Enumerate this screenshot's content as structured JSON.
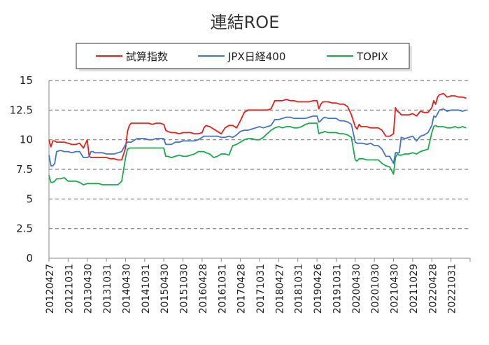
{
  "chart_data": {
    "type": "line",
    "title": "連結ROE",
    "xlabel": "",
    "ylabel": "",
    "ylim": [
      0,
      15
    ],
    "y_ticks": [
      "0",
      "2.5",
      "5",
      "7.5",
      "10",
      "12.5",
      "15"
    ],
    "grid": "horizontal dashed",
    "legend_position": "top",
    "x_tick_labels": [
      "20120427",
      "20121031",
      "20130430",
      "20131031",
      "20140430",
      "20141031",
      "20150430",
      "20151030",
      "20160428",
      "20161031",
      "20170428",
      "20171031",
      "20180427",
      "20181031",
      "20190426",
      "20191031",
      "20200430",
      "20201030",
      "20210430",
      "20211029",
      "20220428",
      "20221031"
    ],
    "series": [
      {
        "name": "試算指数",
        "color": "#e0201b",
        "x": [
          0,
          0.1,
          0.2,
          0.3,
          0.4,
          0.6,
          0.8,
          1.0,
          1.2,
          1.4,
          1.6,
          1.8,
          2.0,
          2.1,
          2.2,
          2.3,
          2.4,
          2.6,
          2.8,
          3.0,
          3.2,
          3.4,
          3.6,
          3.8,
          4.0,
          4.1,
          4.2,
          4.3,
          4.4,
          4.6,
          4.8,
          5.0,
          5.2,
          5.4,
          5.6,
          5.8,
          6.0,
          6.1,
          6.2,
          6.4,
          6.6,
          6.8,
          7.0,
          7.2,
          7.4,
          7.6,
          7.8,
          8.0,
          8.1,
          8.2,
          8.4,
          8.6,
          8.8,
          9.0,
          9.2,
          9.4,
          9.6,
          9.8,
          10.0,
          10.2,
          10.4,
          10.6,
          10.8,
          11.0,
          11.2,
          11.4,
          11.6,
          11.8,
          12.0,
          12.2,
          12.4,
          12.6,
          12.8,
          13.0,
          13.2,
          13.4,
          13.6,
          13.8,
          14.0,
          14.1,
          14.2,
          14.3,
          14.4,
          14.6,
          14.8,
          15.0,
          15.2,
          15.4,
          15.6,
          15.8,
          16.0,
          16.1,
          16.2,
          16.3,
          16.4,
          16.6,
          16.8,
          17.0,
          17.2,
          17.4,
          17.6,
          17.8,
          18.0,
          18.1,
          18.2,
          18.3,
          18.4,
          18.6,
          18.8,
          19.0,
          19.2,
          19.4,
          19.6,
          19.8,
          20.0,
          20.1,
          20.2,
          20.3,
          20.4,
          20.6,
          20.8,
          21.0,
          21.2,
          21.4,
          21.6,
          21.8
        ],
        "values": [
          10.0,
          9.4,
          9.9,
          9.9,
          9.8,
          9.8,
          9.8,
          9.7,
          9.6,
          9.6,
          9.7,
          9.3,
          10.0,
          8.6,
          8.5,
          8.5,
          8.5,
          8.5,
          8.5,
          8.5,
          8.4,
          8.4,
          8.3,
          8.3,
          9.3,
          10.7,
          11.2,
          11.4,
          11.4,
          11.4,
          11.4,
          11.4,
          11.4,
          11.3,
          11.4,
          11.4,
          11.3,
          10.8,
          10.7,
          10.6,
          10.6,
          10.5,
          10.6,
          10.6,
          10.6,
          10.5,
          10.5,
          10.6,
          11.0,
          11.2,
          11.1,
          10.9,
          10.7,
          10.5,
          11.0,
          11.2,
          11.2,
          11.0,
          11.6,
          12.3,
          12.5,
          12.5,
          12.5,
          12.5,
          12.5,
          12.5,
          12.6,
          13.3,
          13.3,
          13.3,
          13.4,
          13.3,
          13.3,
          13.2,
          13.2,
          13.2,
          13.2,
          13.3,
          13.3,
          12.6,
          13.0,
          13.2,
          13.2,
          13.2,
          13.1,
          13.1,
          13.0,
          13.0,
          12.8,
          12.1,
          11.1,
          10.9,
          11.3,
          11.1,
          11.1,
          11.1,
          11.0,
          11.0,
          11.0,
          10.8,
          10.3,
          10.3,
          10.5,
          12.7,
          12.4,
          12.3,
          12.1,
          12.1,
          12.1,
          12.2,
          12.0,
          12.4,
          12.3,
          12.3,
          12.7,
          13.3,
          13.0,
          13.6,
          13.8,
          13.9,
          13.6,
          13.7,
          13.7,
          13.6,
          13.6,
          13.5
        ]
      },
      {
        "name": "JPX日経400",
        "color": "#4472c4",
        "x": [
          0,
          0.1,
          0.2,
          0.3,
          0.4,
          0.6,
          0.8,
          1.0,
          1.2,
          1.4,
          1.6,
          1.8,
          2.0,
          2.1,
          2.2,
          2.3,
          2.4,
          2.6,
          2.8,
          3.0,
          3.2,
          3.4,
          3.6,
          3.8,
          4.0,
          4.1,
          4.2,
          4.3,
          4.4,
          4.6,
          4.8,
          5.0,
          5.2,
          5.4,
          5.6,
          5.8,
          6.0,
          6.1,
          6.2,
          6.4,
          6.6,
          6.8,
          7.0,
          7.2,
          7.4,
          7.6,
          7.8,
          8.0,
          8.1,
          8.2,
          8.4,
          8.6,
          8.8,
          9.0,
          9.2,
          9.4,
          9.6,
          9.8,
          10.0,
          10.2,
          10.4,
          10.6,
          10.8,
          11.0,
          11.2,
          11.4,
          11.6,
          11.8,
          12.0,
          12.2,
          12.4,
          12.6,
          12.8,
          13.0,
          13.2,
          13.4,
          13.6,
          13.8,
          14.0,
          14.1,
          14.2,
          14.3,
          14.4,
          14.6,
          14.8,
          15.0,
          15.2,
          15.4,
          15.6,
          15.8,
          16.0,
          16.1,
          16.2,
          16.3,
          16.4,
          16.6,
          16.8,
          17.0,
          17.2,
          17.4,
          17.6,
          17.8,
          18.0,
          18.1,
          18.2,
          18.3,
          18.4,
          18.6,
          18.8,
          19.0,
          19.2,
          19.4,
          19.6,
          19.8,
          20.0,
          20.1,
          20.2,
          20.3,
          20.4,
          20.6,
          20.8,
          21.0,
          21.2,
          21.4,
          21.6,
          21.8
        ],
        "values": [
          8.7,
          7.8,
          7.8,
          8.0,
          9.0,
          9.1,
          9.0,
          9.0,
          8.9,
          9.0,
          9.0,
          8.5,
          8.5,
          8.6,
          9.0,
          9.0,
          8.9,
          8.9,
          8.9,
          8.8,
          8.8,
          8.8,
          8.9,
          9.0,
          9.6,
          9.8,
          9.8,
          9.8,
          9.9,
          10.1,
          10.1,
          10.1,
          10.0,
          10.0,
          10.1,
          10.1,
          10.1,
          9.6,
          9.6,
          9.6,
          9.8,
          9.8,
          9.9,
          9.9,
          9.9,
          9.9,
          10.0,
          10.2,
          10.3,
          10.3,
          10.3,
          10.3,
          10.3,
          10.2,
          10.2,
          10.3,
          10.2,
          10.4,
          10.7,
          10.8,
          10.8,
          10.9,
          11.0,
          11.1,
          11.0,
          11.1,
          11.2,
          11.7,
          11.7,
          11.8,
          11.9,
          11.9,
          11.8,
          11.8,
          11.8,
          11.8,
          11.9,
          12.0,
          12.0,
          11.5,
          11.6,
          11.8,
          11.9,
          11.8,
          11.8,
          11.8,
          11.6,
          11.6,
          11.5,
          11.3,
          9.8,
          9.7,
          9.7,
          9.7,
          9.7,
          9.6,
          9.7,
          9.5,
          9.5,
          9.2,
          8.6,
          8.6,
          8.0,
          8.9,
          8.9,
          8.9,
          10.2,
          10.1,
          10.2,
          10.3,
          9.9,
          10.3,
          10.4,
          10.6,
          11.2,
          12.0,
          11.9,
          12.2,
          12.5,
          12.6,
          12.4,
          12.5,
          12.5,
          12.5,
          12.4,
          12.5
        ]
      },
      {
        "name": "TOPIX",
        "color": "#1aa84a",
        "x": [
          0,
          0.1,
          0.2,
          0.3,
          0.4,
          0.6,
          0.8,
          1.0,
          1.2,
          1.4,
          1.6,
          1.8,
          2.0,
          2.1,
          2.2,
          2.3,
          2.4,
          2.6,
          2.8,
          3.0,
          3.2,
          3.4,
          3.6,
          3.8,
          4.0,
          4.1,
          4.2,
          4.3,
          4.4,
          4.6,
          4.8,
          5.0,
          5.2,
          5.4,
          5.6,
          5.8,
          6.0,
          6.1,
          6.2,
          6.4,
          6.6,
          6.8,
          7.0,
          7.2,
          7.4,
          7.6,
          7.8,
          8.0,
          8.1,
          8.2,
          8.4,
          8.6,
          8.8,
          9.0,
          9.2,
          9.4,
          9.6,
          9.8,
          10.0,
          10.2,
          10.4,
          10.6,
          10.8,
          11.0,
          11.2,
          11.4,
          11.6,
          11.8,
          12.0,
          12.2,
          12.4,
          12.6,
          12.8,
          13.0,
          13.2,
          13.4,
          13.6,
          13.8,
          14.0,
          14.1,
          14.2,
          14.3,
          14.4,
          14.6,
          14.8,
          15.0,
          15.2,
          15.4,
          15.6,
          15.8,
          16.0,
          16.1,
          16.2,
          16.3,
          16.4,
          16.6,
          16.8,
          17.0,
          17.2,
          17.4,
          17.6,
          17.8,
          18.0,
          18.1,
          18.2,
          18.3,
          18.4,
          18.6,
          18.8,
          19.0,
          19.2,
          19.4,
          19.6,
          19.8,
          20.0,
          20.1,
          20.2,
          20.3,
          20.4,
          20.6,
          20.8,
          21.0,
          21.2,
          21.4,
          21.6,
          21.8
        ],
        "values": [
          7.0,
          6.4,
          6.4,
          6.5,
          6.7,
          6.7,
          6.8,
          6.5,
          6.5,
          6.5,
          6.4,
          6.2,
          6.3,
          6.3,
          6.3,
          6.3,
          6.3,
          6.3,
          6.2,
          6.2,
          6.2,
          6.2,
          6.2,
          6.5,
          8.5,
          9.2,
          9.3,
          9.3,
          9.3,
          9.3,
          9.3,
          9.3,
          9.3,
          9.3,
          9.3,
          9.3,
          9.3,
          8.6,
          8.6,
          8.5,
          8.6,
          8.7,
          8.6,
          8.6,
          8.7,
          8.8,
          9.0,
          9.0,
          9.0,
          8.9,
          8.8,
          8.5,
          8.6,
          8.8,
          8.8,
          8.7,
          9.5,
          9.6,
          9.8,
          10.0,
          10.1,
          10.1,
          10.0,
          10.0,
          10.2,
          10.5,
          10.8,
          11.0,
          11.1,
          11.0,
          11.1,
          11.1,
          11.0,
          11.0,
          11.1,
          11.3,
          11.4,
          11.4,
          11.4,
          10.5,
          10.6,
          10.6,
          10.7,
          10.6,
          10.6,
          10.6,
          10.5,
          10.5,
          10.4,
          10.2,
          8.3,
          8.2,
          8.4,
          8.4,
          8.4,
          8.3,
          8.3,
          8.3,
          8.3,
          8.0,
          7.8,
          7.7,
          7.1,
          8.5,
          8.8,
          8.7,
          8.7,
          8.8,
          8.8,
          8.9,
          8.8,
          9.0,
          9.1,
          9.2,
          10.6,
          11.1,
          11.2,
          11.1,
          11.1,
          11.1,
          11.0,
          11.0,
          11.1,
          11.0,
          11.1,
          11.0
        ]
      }
    ]
  }
}
